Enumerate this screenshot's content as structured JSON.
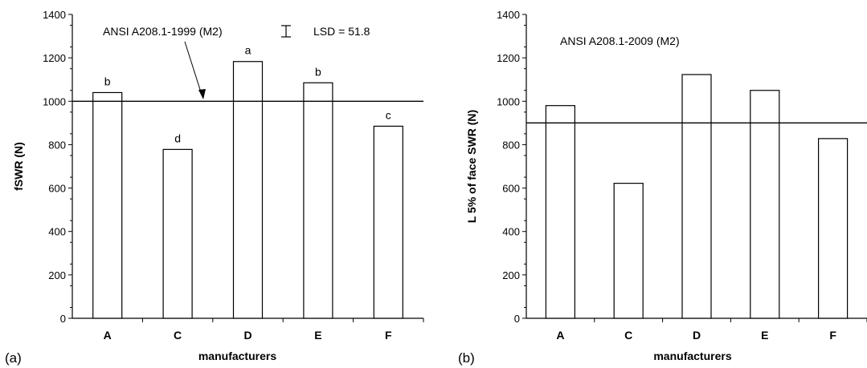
{
  "chart_data": [
    {
      "type": "bar",
      "panel_label": "(a)",
      "categories": [
        "A",
        "C",
        "D",
        "E",
        "F"
      ],
      "values": [
        1040,
        778,
        1183,
        1085,
        885
      ],
      "bar_labels": [
        "b",
        "d",
        "a",
        "b",
        "c"
      ],
      "xlabel": "manufacturers",
      "ylabel": "fSWR (N)",
      "ylim": [
        0,
        1400
      ],
      "yticks": [
        "0",
        "200",
        "400",
        "600",
        "800",
        "1000",
        "1200",
        "1400"
      ],
      "reference_line": {
        "value": 1000,
        "label": "ANSI A208.1-1999 (M2)"
      },
      "lsd": {
        "label": "LSD = 51.8",
        "value": 51.8
      },
      "grid": false
    },
    {
      "type": "bar",
      "panel_label": "(b)",
      "categories": [
        "A",
        "C",
        "D",
        "E",
        "F"
      ],
      "values": [
        980,
        622,
        1123,
        1050,
        828
      ],
      "xlabel": "manufacturers",
      "ylabel": "L 5% of face SWR (N)",
      "ylim": [
        0,
        1400
      ],
      "yticks": [
        "0",
        "200",
        "400",
        "600",
        "800",
        "1000",
        "1200",
        "1400"
      ],
      "reference_line": {
        "value": 900,
        "label": "ANSI A208.1-2009 (M2)"
      },
      "grid": false
    }
  ]
}
